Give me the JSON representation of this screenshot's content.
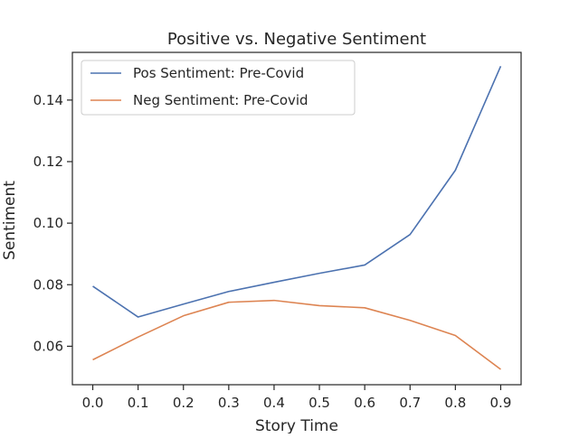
{
  "chart_data": {
    "type": "line",
    "title": "Positive vs. Negative Sentiment",
    "xlabel": "Story Time",
    "ylabel": "Sentiment",
    "x": [
      0.0,
      0.1,
      0.2,
      0.3,
      0.4,
      0.5,
      0.6,
      0.7,
      0.8,
      0.9
    ],
    "x_ticks": [
      "0.0",
      "0.1",
      "0.2",
      "0.3",
      "0.4",
      "0.5",
      "0.6",
      "0.7",
      "0.8",
      "0.9"
    ],
    "y_ticks": [
      "0.06",
      "0.08",
      "0.10",
      "0.12",
      "0.14"
    ],
    "xlim": [
      -0.045,
      0.945
    ],
    "ylim": [
      0.0475,
      0.1555
    ],
    "grid": false,
    "legend_position": "top-left",
    "series": [
      {
        "name": "Pos Sentiment: Pre-Covid",
        "color": "#4c72b0",
        "values": [
          0.0795,
          0.0695,
          0.0737,
          0.0778,
          0.0808,
          0.0837,
          0.0864,
          0.0963,
          0.1172,
          0.151
        ]
      },
      {
        "name": "Neg Sentiment: Pre-Covid",
        "color": "#dd8452",
        "values": [
          0.0556,
          0.063,
          0.0699,
          0.0743,
          0.0749,
          0.0732,
          0.0725,
          0.0684,
          0.0635,
          0.0525
        ]
      }
    ]
  }
}
